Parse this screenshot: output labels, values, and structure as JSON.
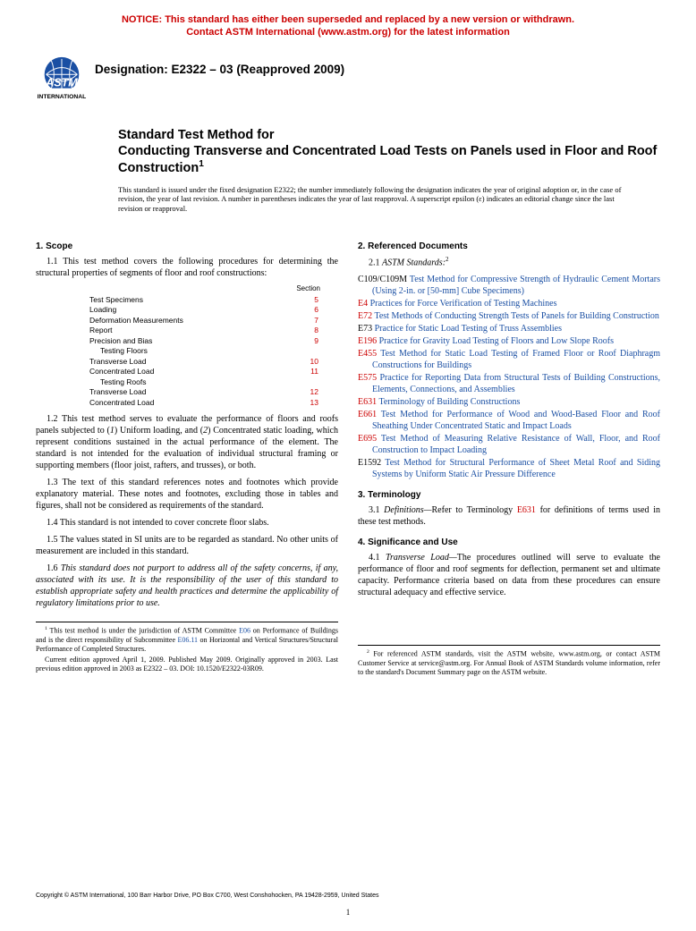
{
  "colors": {
    "notice": "#cc0000",
    "ref_code": "#cc0000",
    "ref_link": "#1a4fa3",
    "text": "#000000",
    "bg": "#ffffff"
  },
  "notice": {
    "line1": "NOTICE: This standard has either been superseded and replaced by a new version or withdrawn.",
    "line2": "Contact ASTM International (www.astm.org) for the latest information"
  },
  "designation": "Designation: E2322 – 03 (Reapproved 2009)",
  "title": {
    "pre": "Standard Test Method for",
    "main": "Conducting Transverse and Concentrated Load Tests on Panels used in Floor and Roof Construction",
    "sup": "1"
  },
  "issuance": "This standard is issued under the fixed designation E2322; the number immediately following the designation indicates the year of original adoption or, in the case of revision, the year of last revision. A number in parentheses indicates the year of last reapproval. A superscript epsilon (ε) indicates an editorial change since the last revision or reapproval.",
  "scope": {
    "head": "1. Scope",
    "p1": "1.1 This test method covers the following procedures for determining the structural properties of segments of floor and roof constructions:",
    "toc_head": "Section",
    "toc": [
      {
        "label": "Test Specimens",
        "num": "5",
        "indent": false
      },
      {
        "label": "Loading",
        "num": "6",
        "indent": false
      },
      {
        "label": "Deformation Measurements",
        "num": "7",
        "indent": false
      },
      {
        "label": "Report",
        "num": "8",
        "indent": false
      },
      {
        "label": "Precision and Bias",
        "num": "9",
        "indent": false
      },
      {
        "label": "Testing Floors",
        "num": "",
        "indent": true
      },
      {
        "label": "Transverse Load",
        "num": "10",
        "indent": false
      },
      {
        "label": "Concentrated Load",
        "num": "11",
        "indent": false
      },
      {
        "label": "Testing Roofs",
        "num": "",
        "indent": true
      },
      {
        "label": "Transverse Load",
        "num": "12",
        "indent": false
      },
      {
        "label": "Concentrated Load",
        "num": "13",
        "indent": false
      }
    ],
    "p2_a": "1.2 This test method serves to evaluate the performance of floors and roofs panels subjected to (",
    "p2_b": ") Uniform loading, and (",
    "p2_c": ") Concentrated static loading, which represent conditions sustained in the actual performance of the element. The standard is not intended for the evaluation of individual structural framing or supporting members (floor joist, rafters, and trusses), or both.",
    "p2_1": "1",
    "p2_2": "2",
    "p3": "1.3 The text of this standard references notes and footnotes which provide explanatory material. These notes and footnotes, excluding those in tables and figures, shall not be considered as requirements of the standard.",
    "p4": "1.4 This standard is not intended to cover concrete floor slabs.",
    "p5": "1.5 The values stated in SI units are to be regarded as standard. No other units of measurement are included in this standard.",
    "p6": "1.6 This standard does not purport to address all of the safety concerns, if any, associated with its use. It is the responsibility of the user of this standard to establish appropriate safety and health practices and determine the applicability of regulatory limitations prior to use."
  },
  "refs": {
    "head": "2. Referenced Documents",
    "sub": "2.1 ",
    "sub_i": "ASTM Standards:",
    "sup": "2",
    "items": [
      {
        "code": "C109/C109M",
        "title": "Test Method for Compressive Strength of Hydraulic Cement Mortars (Using 2-in. or [50-mm] Cube Specimens)",
        "code_black": true
      },
      {
        "code": "E4",
        "title": "Practices for Force Verification of Testing Machines"
      },
      {
        "code": "E72",
        "title": "Test Methods of Conducting Strength Tests of Panels for Building Construction"
      },
      {
        "code": "E73",
        "title": "Practice for Static Load Testing of Truss Assemblies",
        "code_black": true
      },
      {
        "code": "E196",
        "title": "Practice for Gravity Load Testing of Floors and Low Slope Roofs"
      },
      {
        "code": "E455",
        "title": "Test Method for Static Load Testing of Framed Floor or Roof Diaphragm Constructions for Buildings"
      },
      {
        "code": "E575",
        "title": "Practice for Reporting Data from Structural Tests of Building Constructions, Elements, Connections, and Assemblies"
      },
      {
        "code": "E631",
        "title": "Terminology of Building Constructions"
      },
      {
        "code": "E661",
        "title": "Test Method for Performance of Wood and Wood-Based Floor and Roof Sheathing Under Concentrated Static and Impact Loads"
      },
      {
        "code": "E695",
        "title": "Test Method of Measuring Relative Resistance of Wall, Floor, and Roof Construction to Impact Loading"
      },
      {
        "code": "E1592",
        "title": "Test Method for Structural Performance of Sheet Metal Roof and Siding Systems by Uniform Static Air Pressure Difference",
        "code_black": true
      }
    ]
  },
  "term": {
    "head": "3. Terminology",
    "p1_a": "3.1 ",
    "p1_i": "Definitions—",
    "p1_b": "Refer to Terminology ",
    "p1_link": "E631",
    "p1_c": " for definitions of terms used in these test methods."
  },
  "sig": {
    "head": "4. Significance and Use",
    "p1_a": "4.1 ",
    "p1_i": "Transverse Load—",
    "p1_b": "The procedures outlined will serve to evaluate the performance of floor and roof segments for deflection, permanent set and ultimate capacity. Performance criteria based on data from these procedures can ensure structural adequacy and effective service."
  },
  "footnote1": {
    "a": "This test method is under the jurisdiction of ASTM Committee ",
    "link1": "E06",
    "b": " on Performance of Buildings and is the direct responsibility of Subcommittee ",
    "link2": "E06.11",
    "c": " on Horizontal and Vertical Structures/Structural Performance of Completed Structures.",
    "p2": "Current edition approved April 1, 2009. Published May 2009. Originally approved in 2003. Last previous edition approved in 2003 as E2322 – 03. DOI: 10.1520/E2322-03R09.",
    "sup": "1"
  },
  "footnote2": {
    "sup": "2",
    "text": "For referenced ASTM standards, visit the ASTM website, www.astm.org, or contact ASTM Customer Service at service@astm.org. For Annual Book of ASTM Standards volume information, refer to the standard's Document Summary page on the ASTM website."
  },
  "copyright": "Copyright © ASTM International, 100 Barr Harbor Drive, PO Box C700, West Conshohocken, PA 19428-2959, United States",
  "pagenum": "1"
}
